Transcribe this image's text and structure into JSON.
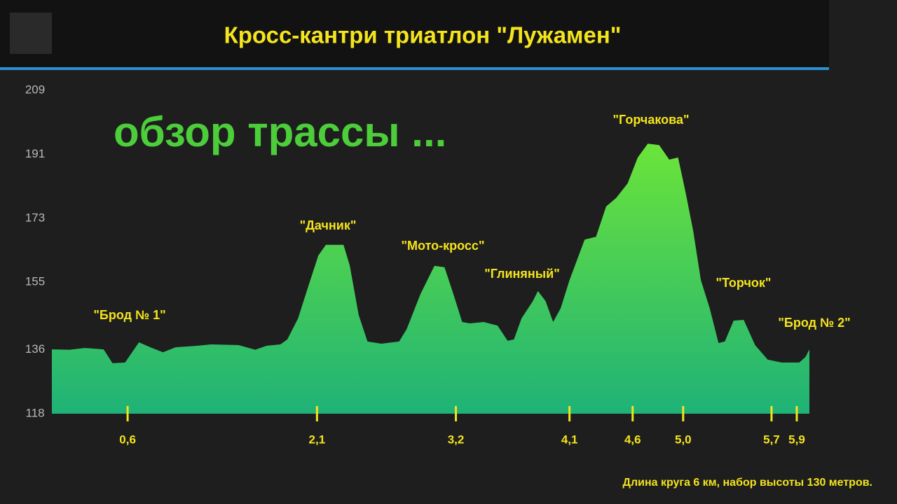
{
  "chart_data": {
    "type": "area",
    "title": "Кросс-кантри триатлон \"Лужамен\"",
    "subtitle": "обзор трассы ...",
    "note": "Длина круга 6 км, набор высоты 130 метров.",
    "annotations": [
      "\"Брод № 1\"",
      "\"Дачник\"",
      "\"Мото-кросс\"",
      "\"Глиняный\"",
      "\"Горчакова\"",
      "\"Торчок\"",
      "\"Брод № 2\""
    ],
    "x": [
      0,
      0.14,
      0.26,
      0.41,
      0.48,
      0.58,
      0.69,
      0.78,
      0.88,
      0.98,
      1.15,
      1.26,
      1.48,
      1.61,
      1.7,
      1.81,
      1.865,
      1.95,
      2.03,
      2.11,
      2.17,
      2.31,
      2.36,
      2.43,
      2.5,
      2.61,
      2.75,
      2.81,
      2.92,
      3.03,
      3.11,
      3.18,
      3.25,
      3.31,
      3.42,
      3.53,
      3.61,
      3.66,
      3.72,
      3.81,
      3.85,
      3.91,
      3.97,
      4.03,
      4.1,
      4.22,
      4.31,
      4.39,
      4.47,
      4.56,
      4.64,
      4.72,
      4.81,
      4.89,
      4.96,
      5.02,
      5.08,
      5.14,
      5.21,
      5.28,
      5.33,
      5.4,
      5.48,
      5.57,
      5.67,
      5.78,
      5.92,
      5.97,
      6.0
    ],
    "values": [
      136.1,
      136.0,
      136.5,
      136.1,
      132.2,
      132.4,
      138.1,
      136.7,
      135.3,
      136.7,
      137.1,
      137.5,
      137.3,
      136.0,
      137.1,
      137.5,
      138.9,
      144.8,
      153.7,
      162.5,
      165.5,
      165.5,
      159.6,
      145.8,
      138.3,
      137.7,
      138.3,
      141.8,
      151.7,
      159.6,
      159.2,
      151.7,
      143.8,
      143.4,
      143.8,
      142.8,
      138.5,
      138.9,
      144.8,
      149.7,
      152.5,
      149.7,
      143.8,
      147.7,
      155.6,
      167.0,
      167.8,
      176.3,
      178.7,
      182.8,
      190.1,
      194.0,
      193.6,
      189.5,
      190.1,
      180.2,
      169.4,
      155.6,
      147.7,
      137.9,
      138.3,
      144.2,
      144.4,
      137.3,
      133.2,
      132.4,
      132.4,
      134.0,
      136.1
    ],
    "gradient": [
      "#6be43a",
      "#1fb277"
    ],
    "xlim": [
      0,
      6
    ],
    "ylim": [
      118,
      209
    ],
    "yticks": [
      118,
      136,
      155,
      173,
      191,
      209
    ],
    "xticks": [
      {
        "value": 0.6,
        "label": "0,6"
      },
      {
        "value": 2.1,
        "label": "2,1"
      },
      {
        "value": 3.2,
        "label": "3,2"
      },
      {
        "value": 4.1,
        "label": "4,1"
      },
      {
        "value": 4.6,
        "label": "4,6"
      },
      {
        "value": 5.0,
        "label": "5,0"
      },
      {
        "value": 5.7,
        "label": "5,7"
      },
      {
        "value": 5.9,
        "label": "5,9"
      }
    ]
  }
}
